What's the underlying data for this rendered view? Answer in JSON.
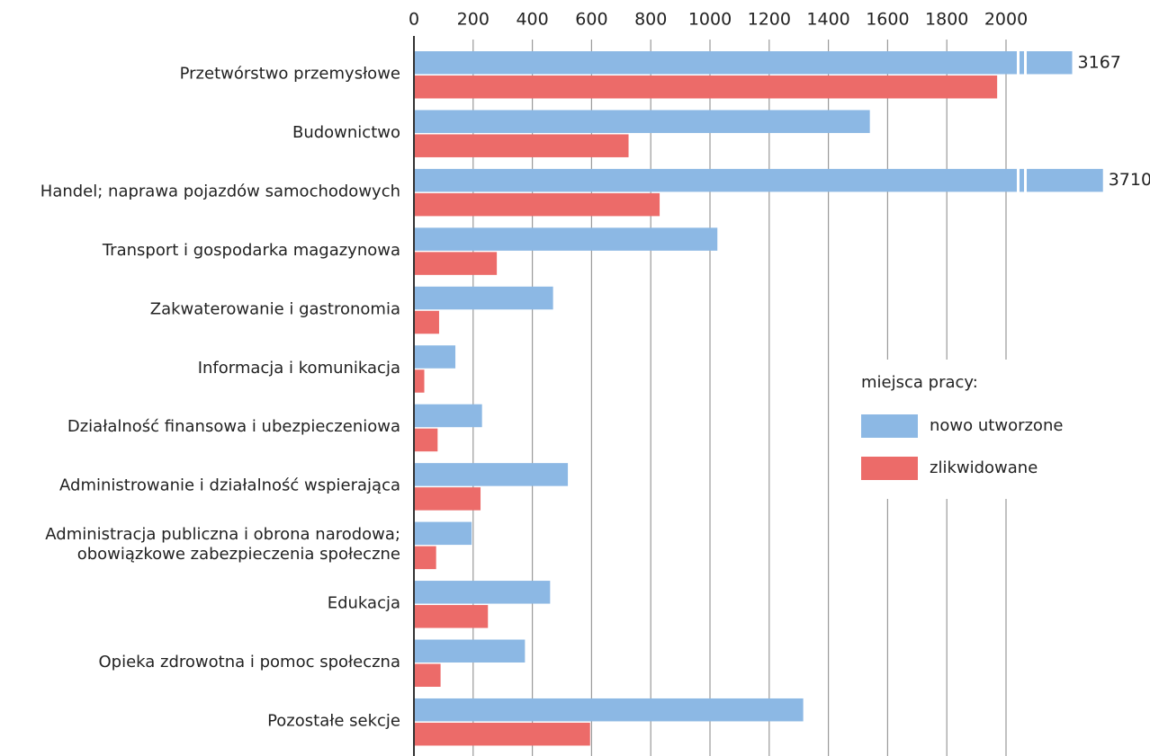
{
  "chart_data": {
    "type": "bar",
    "orientation": "horizontal",
    "categories": [
      "Przetwórstwo przemysłowe",
      "Budownictwo",
      "Handel; naprawa pojazdów samochodowych",
      "Transport i gospodarka magazynowa",
      "Zakwaterowanie i gastronomia",
      "Informacja i komunikacja",
      "Działalność finansowa i ubezpieczeniowa",
      "Administrowanie i działalność wspierająca",
      [
        "Administracja publiczna i obrona narodowa;",
        "obowiązkowe zabezpieczenia społeczne"
      ],
      "Edukacja",
      "Opieka zdrowotna i pomoc społeczna",
      "Pozostałe sekcje"
    ],
    "series": [
      {
        "name": "nowo utworzone",
        "color": "#8cb8e4",
        "values": [
          3167,
          1540,
          3710,
          1025,
          470,
          140,
          230,
          520,
          195,
          460,
          375,
          1315
        ]
      },
      {
        "name": "zlikwidowane",
        "color": "#ec6b69",
        "values": [
          1970,
          725,
          830,
          280,
          85,
          35,
          80,
          225,
          75,
          250,
          90,
          595
        ]
      }
    ],
    "legend_title": "miejsca pracy:",
    "xlim": [
      0,
      2000
    ],
    "xticks": [
      0,
      200,
      400,
      600,
      800,
      1000,
      1200,
      1400,
      1600,
      1800,
      2000
    ],
    "axis_break": true,
    "grid": true,
    "legend": "right"
  }
}
